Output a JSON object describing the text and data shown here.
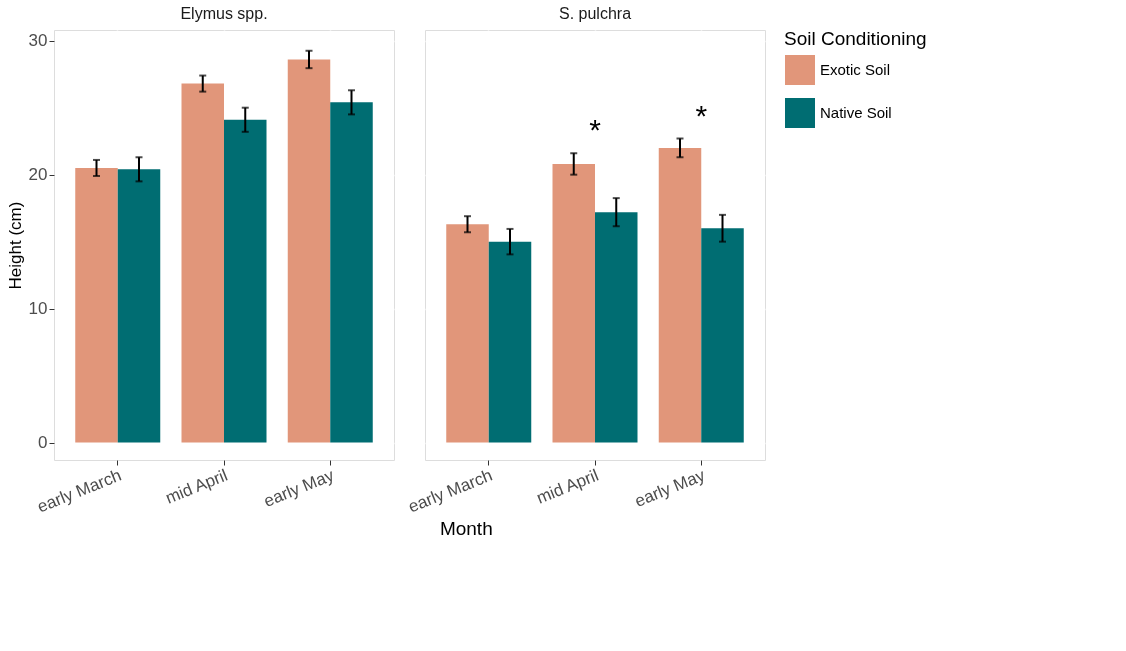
{
  "chart_data": [
    {
      "type": "bar",
      "title": "Elymus spp.",
      "xlabel": "Month",
      "ylabel": "Height (cm)",
      "legend_title": "Soil Conditioning",
      "legend": "right",
      "grid": true,
      "categories": [
        "early March",
        "mid April",
        "early May"
      ],
      "series": [
        {
          "name": "Exotic Soil",
          "color": "#e1967a",
          "values": [
            20.5,
            26.8,
            28.6
          ],
          "errors": [
            0.6,
            0.6,
            0.65
          ]
        },
        {
          "name": "Native Soil",
          "color": "#006d72",
          "values": [
            20.4,
            24.1,
            25.4
          ],
          "errors": [
            0.9,
            0.9,
            0.9
          ]
        }
      ],
      "ylim": [
        -1.3,
        30.8
      ],
      "yticks": [
        0,
        10,
        20,
        30
      ]
    },
    {
      "type": "bar",
      "title": "S. pulchra",
      "grid": true,
      "tick_labels": "x",
      "categories": [
        "early March",
        "mid April",
        "early May"
      ],
      "series": [
        {
          "name": "Exotic Soil",
          "color": "#e1967a",
          "values": [
            16.3,
            20.8,
            22.0
          ],
          "errors": [
            0.6,
            0.8,
            0.7
          ]
        },
        {
          "name": "Native Soil",
          "color": "#006d72",
          "values": [
            15.0,
            17.2,
            16.0
          ],
          "errors": [
            0.95,
            1.05,
            1.0
          ]
        }
      ],
      "annotations": [
        "*",
        "*"
      ],
      "ylim": [
        -1.3,
        30.8
      ],
      "yticks": [
        0,
        10,
        20,
        30
      ]
    }
  ]
}
